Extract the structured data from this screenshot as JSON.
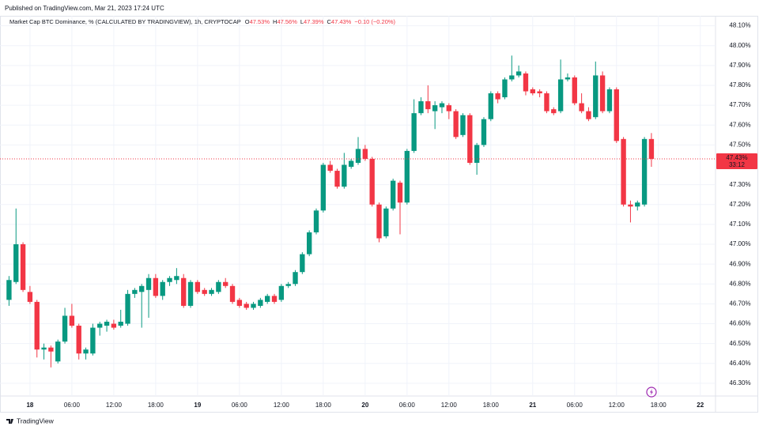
{
  "header": {
    "published": "Published on TradingView.com, Mar 21, 2023 17:24 UTC"
  },
  "footer": {
    "brand": "TradingView"
  },
  "chart_data": {
    "type": "candlestick",
    "title": "Market Cap BTC Dominance, % (CALCULATED BY TRADINGVIEW), 1h, CRYPTOCAP",
    "legend_values": [
      {
        "key": "O",
        "value": "47.53%"
      },
      {
        "key": "H",
        "value": "47.56%"
      },
      {
        "key": "L",
        "value": "47.39%"
      },
      {
        "key": "C",
        "value": "47.43%"
      }
    ],
    "change_label": "−0.10 (−0.20%)",
    "last_price_label": "47.43%",
    "countdown_label": "33:12",
    "up_color": "#089981",
    "down_color": "#f23645",
    "grid": true,
    "categories": [
      null,
      null,
      null,
      "18",
      null,
      null,
      null,
      null,
      null,
      "06:00",
      null,
      null,
      null,
      null,
      null,
      "12:00",
      null,
      null,
      null,
      null,
      null,
      "18:00",
      null,
      null,
      null,
      null,
      null,
      "19",
      null,
      null,
      null,
      null,
      null,
      "06:00",
      null,
      null,
      null,
      null,
      null,
      "12:00",
      null,
      null,
      null,
      null,
      null,
      "18:00",
      null,
      null,
      null,
      null,
      null,
      "20",
      null,
      null,
      null,
      null,
      null,
      "06:00",
      null,
      null,
      null,
      null,
      null,
      "12:00",
      null,
      null,
      null,
      null,
      null,
      "18:00",
      null,
      null,
      null,
      null,
      null,
      "21",
      null,
      null,
      null,
      null,
      null,
      "06:00",
      null,
      null,
      null,
      null,
      null,
      "12:00",
      null,
      null,
      null,
      null,
      null,
      "18:00",
      null,
      null,
      null,
      null,
      null,
      "22",
      null
    ],
    "open": [
      46.72,
      46.81,
      47.0,
      46.76,
      46.71,
      46.47,
      46.48,
      46.41,
      46.51,
      46.64,
      46.59,
      46.45,
      46.45,
      46.58,
      46.59,
      46.6,
      46.59,
      46.6,
      46.75,
      46.76,
      46.77,
      46.83,
      46.74,
      46.81,
      46.82,
      46.83,
      46.69,
      46.81,
      46.77,
      46.75,
      46.76,
      46.81,
      46.79,
      46.72,
      46.7,
      46.68,
      46.69,
      46.71,
      46.74,
      46.72,
      46.79,
      46.8,
      46.86,
      46.95,
      47.06,
      47.17,
      47.4,
      47.37,
      47.29,
      47.39,
      47.41,
      47.48,
      47.43,
      47.2,
      47.04,
      47.18,
      47.31,
      47.21,
      47.47,
      47.66,
      47.72,
      47.67,
      47.69,
      47.7,
      47.67,
      47.55,
      47.65,
      47.41,
      47.5,
      47.63,
      47.76,
      47.74,
      47.83,
      47.85,
      47.86,
      47.78,
      47.77,
      47.76,
      47.68,
      47.67,
      47.83,
      47.84,
      47.71,
      47.67,
      47.64,
      47.85,
      47.67,
      47.78,
      47.53,
      47.2,
      47.19,
      47.2,
      47.53,
      null,
      null,
      null,
      null,
      null,
      null,
      null,
      null
    ],
    "high": [
      46.84,
      47.18,
      47.01,
      46.79,
      46.72,
      46.5,
      46.49,
      46.52,
      46.68,
      46.7,
      46.6,
      46.48,
      46.6,
      46.61,
      46.62,
      46.62,
      46.67,
      46.77,
      46.78,
      46.8,
      46.85,
      46.85,
      46.82,
      46.84,
      46.88,
      46.85,
      46.82,
      46.82,
      46.78,
      46.78,
      46.82,
      46.83,
      46.8,
      46.73,
      46.71,
      46.71,
      46.73,
      46.75,
      46.75,
      46.8,
      46.81,
      46.87,
      46.96,
      47.07,
      47.18,
      47.41,
      47.42,
      47.38,
      47.46,
      47.43,
      47.54,
      47.5,
      47.44,
      47.21,
      47.19,
      47.33,
      47.32,
      47.48,
      47.73,
      47.74,
      47.8,
      47.72,
      47.72,
      47.71,
      47.68,
      47.66,
      47.66,
      47.51,
      47.64,
      47.77,
      47.77,
      47.84,
      47.95,
      47.9,
      47.87,
      47.79,
      47.78,
      47.77,
      47.69,
      47.93,
      47.86,
      47.85,
      47.76,
      47.69,
      47.92,
      47.87,
      47.79,
      47.79,
      47.54,
      47.22,
      47.22,
      47.54,
      47.56,
      null,
      null,
      null,
      null,
      null,
      null,
      null,
      null
    ],
    "low": [
      46.69,
      46.8,
      46.76,
      46.7,
      46.43,
      46.42,
      46.38,
      46.4,
      46.5,
      46.58,
      46.42,
      46.42,
      46.44,
      46.54,
      46.56,
      46.57,
      46.58,
      46.59,
      46.73,
      46.58,
      46.63,
      46.73,
      46.72,
      46.79,
      46.8,
      46.68,
      46.68,
      46.75,
      46.74,
      46.74,
      46.75,
      46.78,
      46.7,
      46.68,
      46.67,
      46.67,
      46.68,
      46.7,
      46.7,
      46.71,
      46.78,
      46.79,
      46.85,
      46.94,
      47.05,
      47.16,
      47.36,
      47.28,
      47.28,
      47.38,
      47.4,
      47.42,
      47.19,
      47.01,
      47.03,
      47.17,
      47.05,
      47.2,
      47.46,
      47.65,
      47.66,
      47.58,
      47.66,
      47.63,
      47.53,
      47.54,
      47.4,
      47.35,
      47.49,
      47.62,
      47.71,
      47.73,
      47.82,
      47.84,
      47.75,
      47.75,
      47.74,
      47.66,
      47.65,
      47.66,
      47.82,
      47.7,
      47.66,
      47.62,
      47.63,
      47.66,
      47.66,
      47.51,
      47.19,
      47.11,
      47.17,
      47.19,
      47.39,
      null,
      null,
      null,
      null,
      null,
      null,
      null,
      null
    ],
    "close": [
      46.82,
      47.0,
      46.77,
      46.71,
      46.47,
      46.48,
      46.46,
      46.51,
      46.64,
      46.59,
      46.45,
      46.47,
      46.58,
      46.6,
      46.61,
      46.58,
      46.61,
      46.75,
      46.77,
      46.79,
      46.83,
      46.74,
      46.81,
      46.83,
      46.84,
      46.69,
      46.81,
      46.76,
      46.75,
      46.77,
      46.81,
      46.79,
      46.71,
      46.69,
      46.68,
      46.7,
      46.72,
      46.74,
      46.71,
      46.79,
      46.8,
      46.86,
      46.95,
      47.06,
      47.17,
      47.4,
      47.37,
      47.29,
      47.4,
      47.42,
      47.48,
      47.43,
      47.2,
      47.03,
      47.18,
      47.32,
      47.21,
      47.47,
      47.66,
      47.72,
      47.68,
      47.7,
      47.71,
      47.67,
      47.54,
      47.65,
      47.41,
      47.5,
      47.63,
      47.76,
      47.73,
      47.83,
      47.85,
      47.87,
      47.77,
      47.76,
      47.76,
      47.67,
      47.66,
      47.83,
      47.84,
      47.71,
      47.67,
      47.63,
      47.85,
      47.67,
      47.78,
      47.52,
      47.2,
      47.19,
      47.21,
      47.53,
      47.43,
      null,
      null,
      null,
      null,
      null,
      null,
      null,
      null
    ],
    "ylim": [
      46.24,
      48.19
    ],
    "yticks": [
      {
        "value": 46.3,
        "label": "46.30%"
      },
      {
        "value": 46.4,
        "label": "46.40%"
      },
      {
        "value": 46.5,
        "label": "46.50%"
      },
      {
        "value": 46.6,
        "label": "46.60%"
      },
      {
        "value": 46.7,
        "label": "46.70%"
      },
      {
        "value": 46.8,
        "label": "46.80%"
      },
      {
        "value": 46.9,
        "label": "46.90%"
      },
      {
        "value": 47.0,
        "label": "47.00%"
      },
      {
        "value": 47.1,
        "label": "47.10%"
      },
      {
        "value": 47.2,
        "label": "47.20%"
      },
      {
        "value": 47.3,
        "label": "47.30%"
      },
      {
        "value": 47.5,
        "label": "47.50%"
      },
      {
        "value": 47.6,
        "label": "47.60%"
      },
      {
        "value": 47.7,
        "label": "47.70%"
      },
      {
        "value": 47.8,
        "label": "47.80%"
      },
      {
        "value": 47.9,
        "label": "47.90%"
      },
      {
        "value": 48.0,
        "label": "48.00%"
      },
      {
        "value": 48.1,
        "label": "48.10%"
      }
    ]
  }
}
